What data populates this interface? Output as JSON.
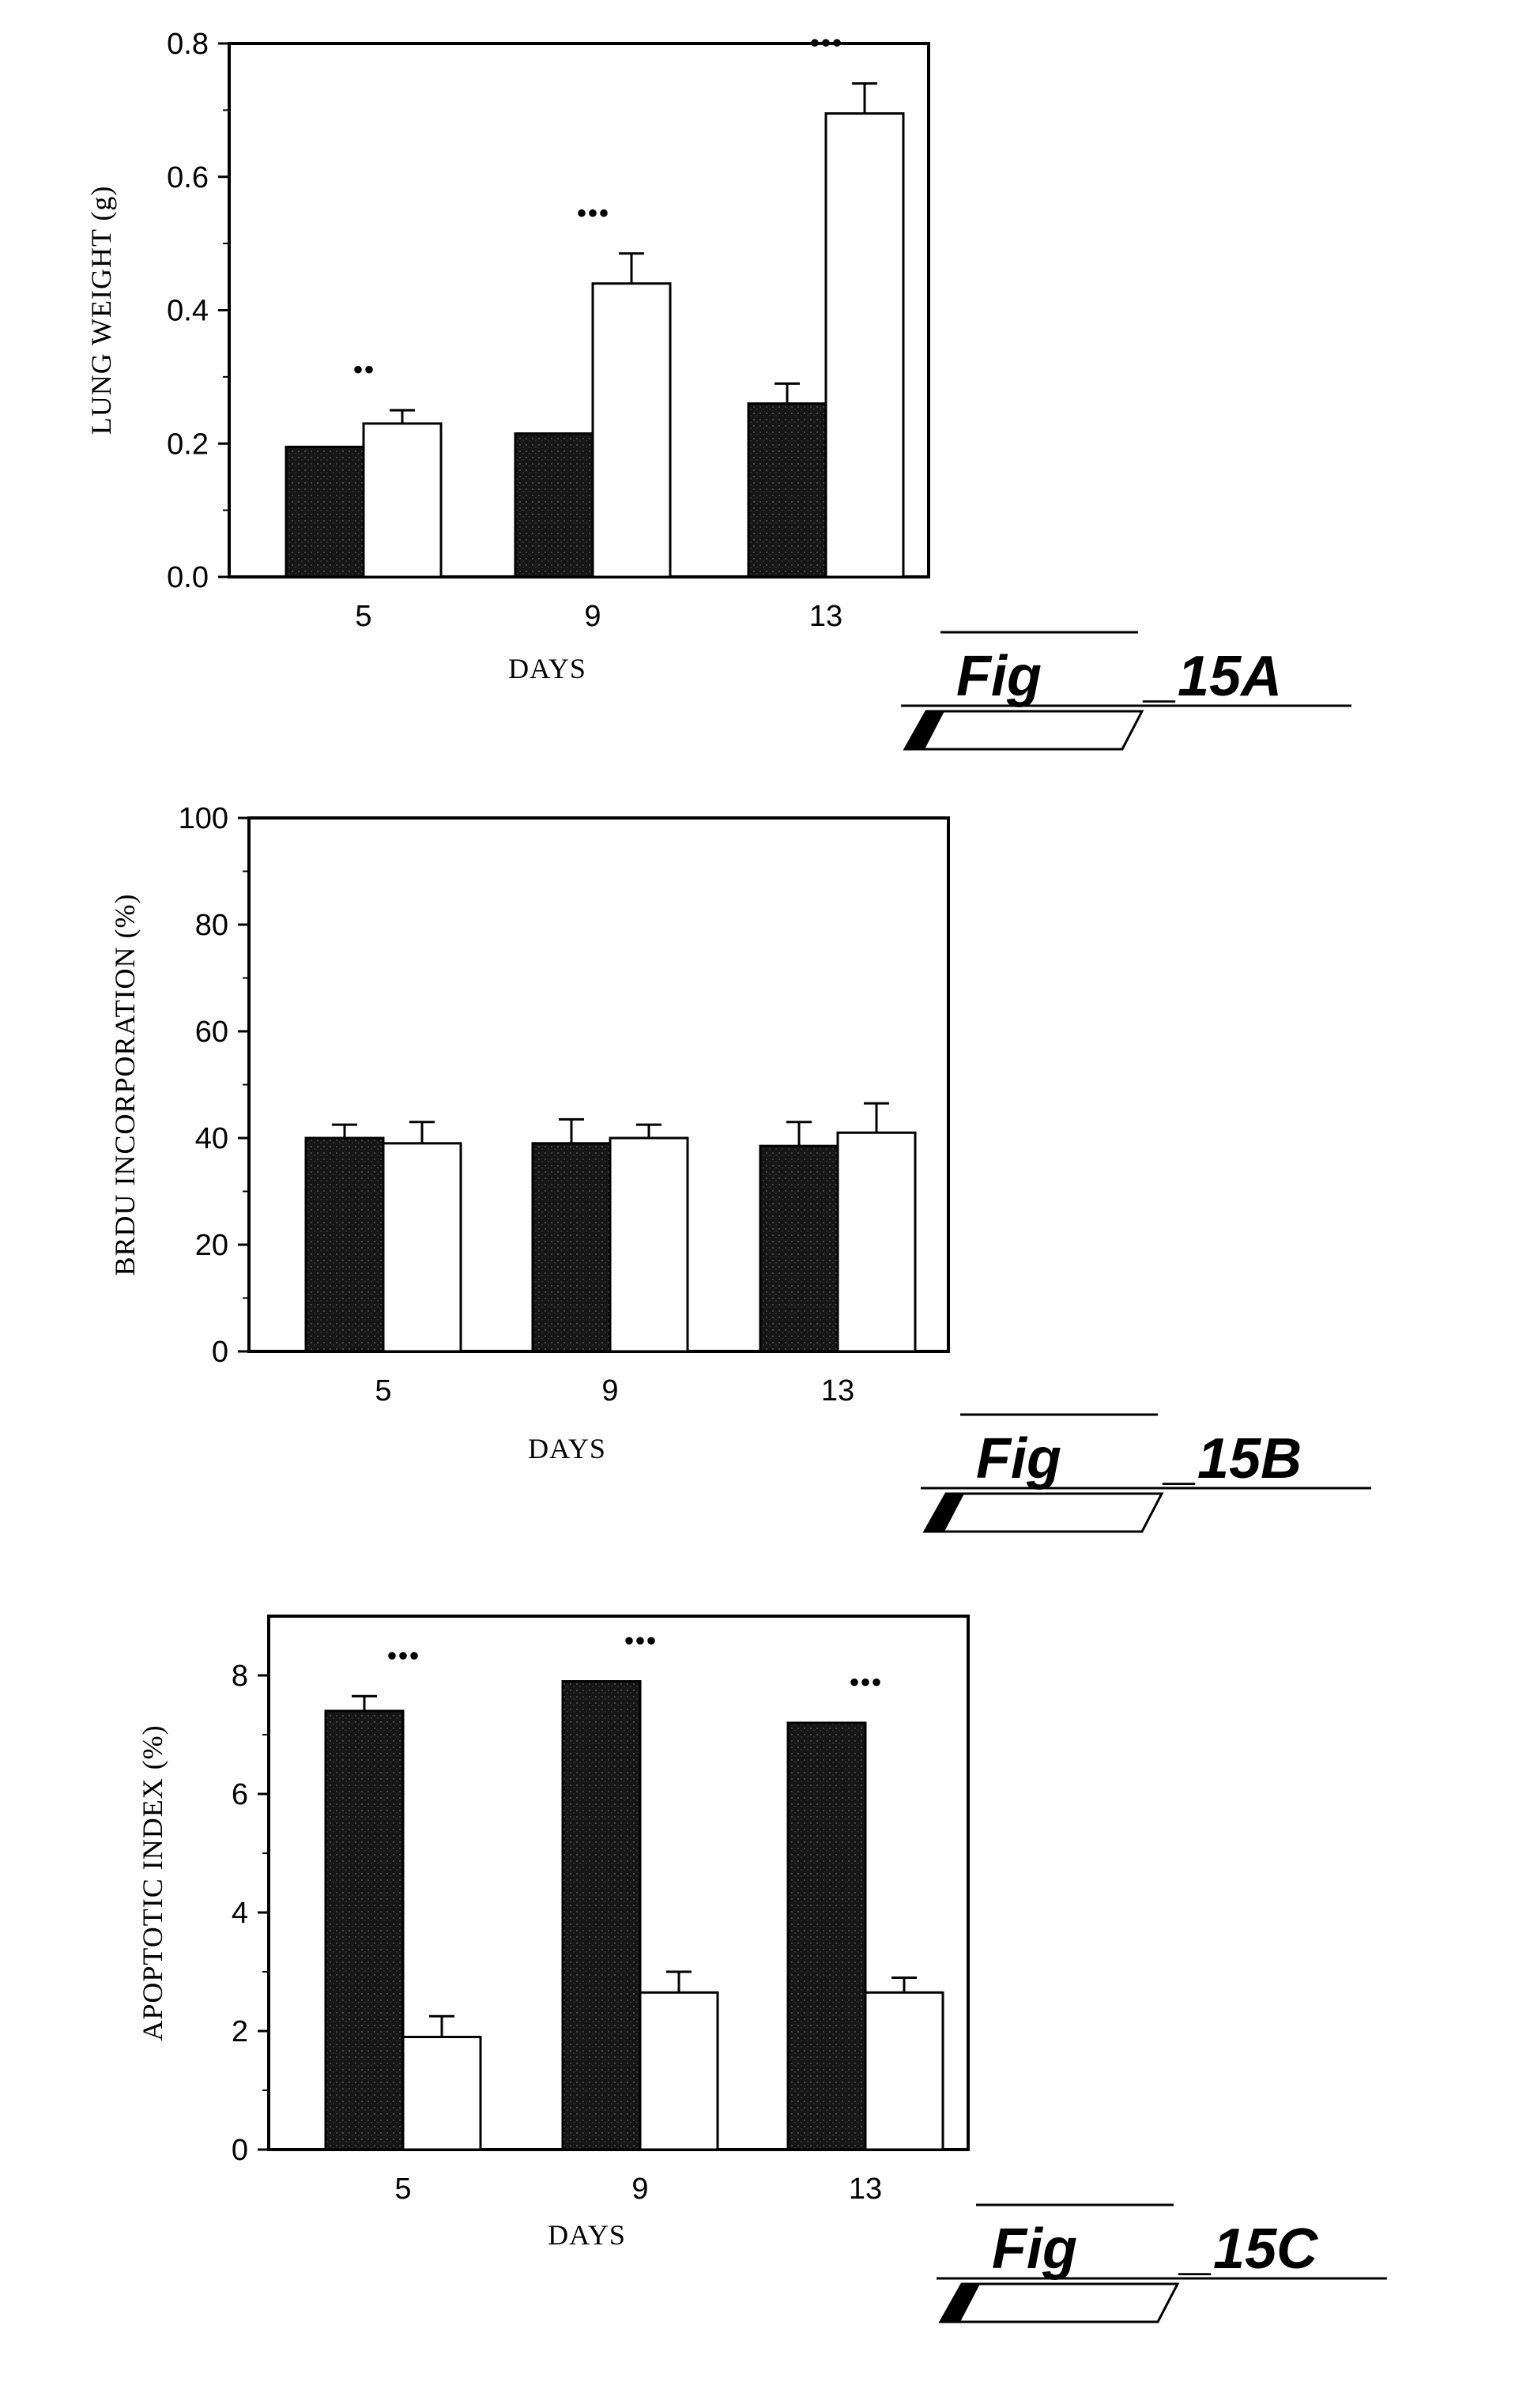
{
  "chart_data": [
    {
      "type": "bar",
      "figure_label": "15A",
      "fig_prefix": "Fig",
      "categories": [
        "5",
        "9",
        "13"
      ],
      "series": [
        {
          "values": [
            0.195,
            0.215,
            0.26
          ],
          "errors": [
            0.0,
            0.0,
            0.03
          ],
          "color": "#1a1a1a"
        },
        {
          "values": [
            0.23,
            0.44,
            0.695
          ],
          "errors": [
            0.02,
            0.045,
            0.045
          ],
          "color": "#ffffff"
        }
      ],
      "significance": [
        "••",
        "•••",
        "•••"
      ],
      "xlabel": "DAYS",
      "ylabel": "LUNG WEIGHT (g)",
      "ylim": [
        0,
        0.8
      ],
      "yticks": [
        "0.0",
        "0.2",
        "0.4",
        "0.6",
        "0.8"
      ]
    },
    {
      "type": "bar",
      "figure_label": "15B",
      "fig_prefix": "Fig",
      "categories": [
        "5",
        "9",
        "13"
      ],
      "series": [
        {
          "values": [
            40,
            39,
            38.5
          ],
          "errors": [
            2.5,
            4.5,
            4.5
          ],
          "color": "#1a1a1a"
        },
        {
          "values": [
            39,
            40,
            41
          ],
          "errors": [
            4,
            2.5,
            5.5
          ],
          "color": "#ffffff"
        }
      ],
      "significance": [
        "",
        "",
        ""
      ],
      "xlabel": "DAYS",
      "ylabel": "BRDU INCORPORATION (%)",
      "ylim": [
        0,
        100
      ],
      "yticks": [
        "0",
        "20",
        "40",
        "60",
        "80",
        "100"
      ]
    },
    {
      "type": "bar",
      "figure_label": "15C",
      "fig_prefix": "Fig",
      "categories": [
        "5",
        "9",
        "13"
      ],
      "series": [
        {
          "values": [
            7.4,
            7.9,
            7.2
          ],
          "errors": [
            0.25,
            0.0,
            0.0
          ],
          "color": "#1a1a1a"
        },
        {
          "values": [
            1.9,
            2.65,
            2.65
          ],
          "errors": [
            0.35,
            0.35,
            0.25
          ],
          "color": "#ffffff"
        }
      ],
      "significance": [
        "•••",
        "•••",
        "•••"
      ],
      "xlabel": "DAYS",
      "ylabel": "APOPTOTIC INDEX (%)",
      "ylim": [
        0,
        9
      ],
      "yticks": [
        "0",
        "2",
        "4",
        "6",
        "8"
      ]
    }
  ]
}
